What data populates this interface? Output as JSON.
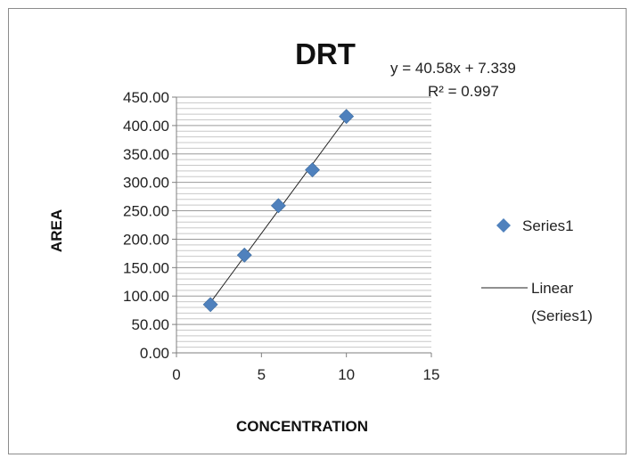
{
  "chart_data": {
    "type": "scatter",
    "title": "DRT",
    "xlabel": "CONCENTRATION",
    "ylabel": "AREA",
    "xlim": [
      0,
      15
    ],
    "ylim": [
      0,
      450
    ],
    "x_ticks": [
      "0",
      "5",
      "10",
      "15"
    ],
    "y_ticks": [
      "0.00",
      "50.00",
      "100.00",
      "150.00",
      "200.00",
      "250.00",
      "300.00",
      "350.00",
      "400.00",
      "450.00"
    ],
    "grid": "horizontal",
    "legend_position": "right",
    "series": [
      {
        "name": "Series1",
        "color": "#4f81bd",
        "marker": "diamond",
        "x": [
          2,
          4,
          6,
          8,
          10
        ],
        "y": [
          85,
          172,
          259,
          322,
          416
        ]
      }
    ],
    "trendline": {
      "name_line1": "Linear",
      "name_line2": "(Series1)",
      "slope": 40.58,
      "intercept": 7.339,
      "equation": "y = 40.58x + 7.339",
      "r_squared": "R² = 0.997",
      "color": "#222222"
    }
  }
}
